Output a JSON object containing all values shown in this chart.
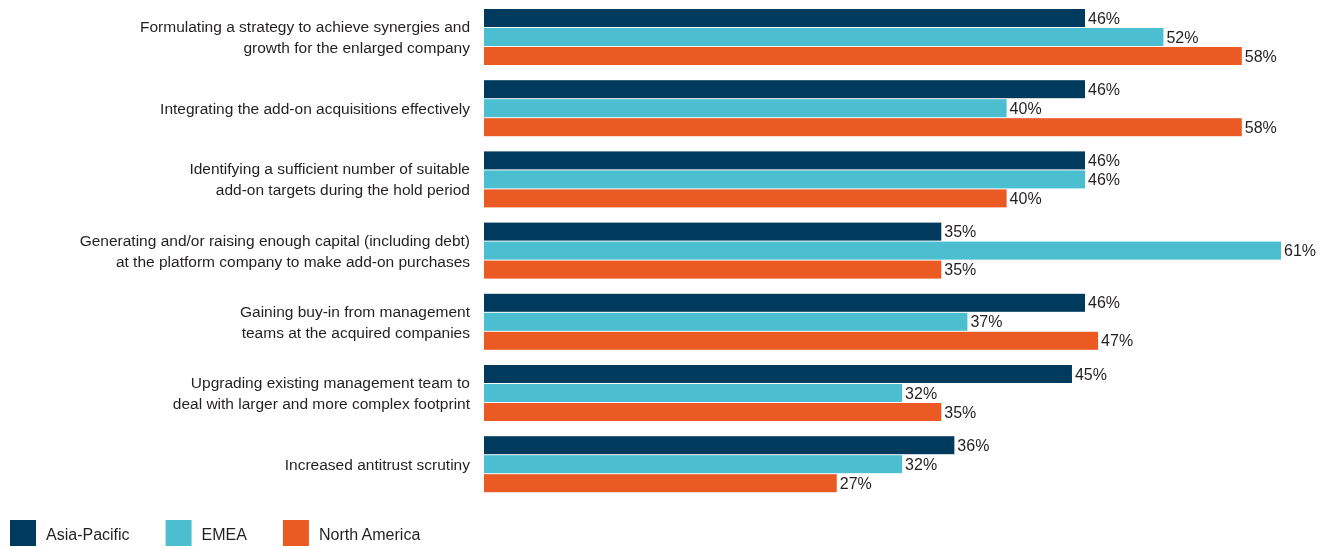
{
  "chart_data": {
    "type": "bar",
    "orientation": "horizontal",
    "legend": "bottom left",
    "categories": [
      "Formulating a strategy to achieve synergies and\ngrowth for the enlarged company",
      "Integrating the add-on acquisitions effectively",
      "Identifying a sufficient number of suitable\nadd-on targets during the hold period",
      "Generating and/or raising enough capital (including debt)\nat the platform company to make add-on purchases",
      "Gaining buy-in from management\nteams at the acquired companies",
      "Upgrading existing management team to\ndeal with larger and more complex footprint",
      "Increased antitrust scrutiny"
    ],
    "series": [
      {
        "name": "Asia-Pacific",
        "color": "#003a5d",
        "values": [
          46,
          46,
          46,
          35,
          46,
          45,
          36
        ],
        "value_labels": [
          "46%",
          "46%",
          "46%",
          "35%",
          "46%",
          "45%",
          "36%"
        ]
      },
      {
        "name": "EMEA",
        "color": "#4bbfd0",
        "values": [
          52,
          40,
          46,
          61,
          37,
          32,
          32
        ],
        "value_labels": [
          "52%",
          "40%",
          "46%",
          "61%",
          "37%",
          "32%",
          "32%"
        ]
      },
      {
        "name": "North America",
        "color": "#ec5a24",
        "values": [
          58,
          58,
          40,
          35,
          47,
          35,
          27
        ],
        "value_labels": [
          "58%",
          "58%",
          "40%",
          "35%",
          "47%",
          "35%",
          "27%"
        ]
      }
    ]
  }
}
